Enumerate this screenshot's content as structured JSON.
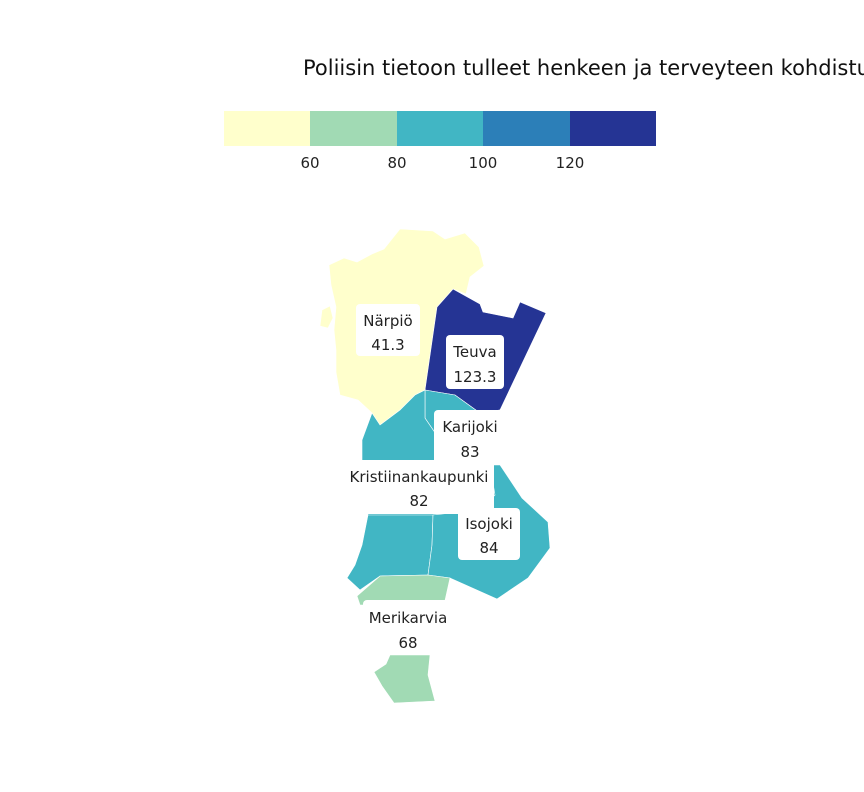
{
  "title": "Poliisin tietoon tulleet henkeen ja terveyteen kohdistu",
  "legend": {
    "colors": [
      "#ffffcc",
      "#a1dab4",
      "#41b6c4",
      "#2c7fb8",
      "#253494"
    ],
    "ticks": [
      "60",
      "80",
      "100",
      "120"
    ]
  },
  "regions": [
    {
      "name": "Närpiö",
      "value": "41.3",
      "color": "#ffffcc"
    },
    {
      "name": "Teuva",
      "value": "123.3",
      "color": "#253494"
    },
    {
      "name": "Karijoki",
      "value": "83",
      "color": "#41b6c4"
    },
    {
      "name": "Kristiinankaupunki",
      "value": "82",
      "color": "#41b6c4"
    },
    {
      "name": "Isojoki",
      "value": "84",
      "color": "#41b6c4"
    },
    {
      "name": "Merikarvia",
      "value": "68",
      "color": "#a1dab4"
    }
  ]
}
